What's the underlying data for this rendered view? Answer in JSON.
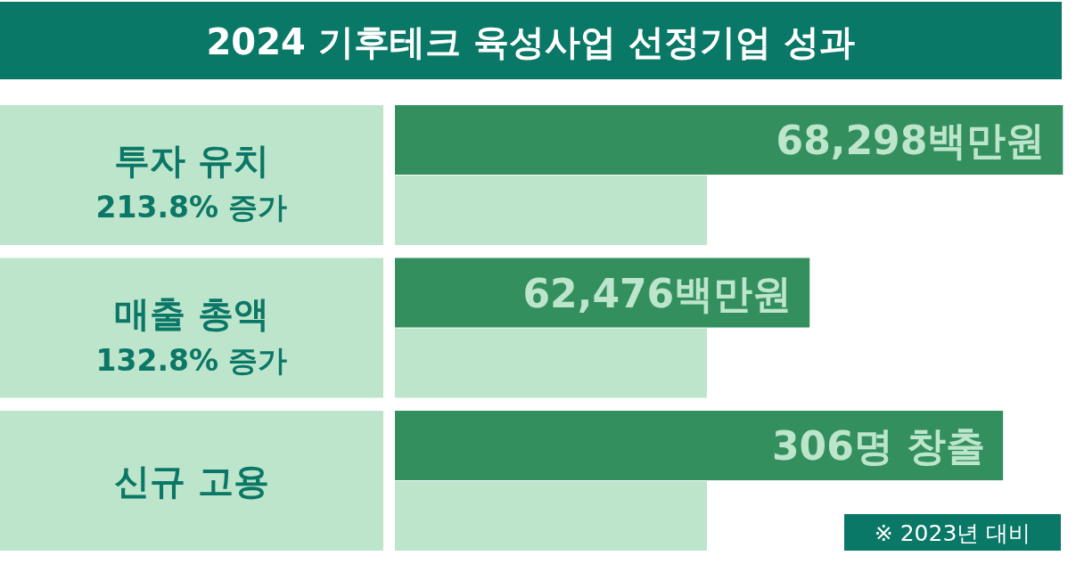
{
  "chart_data": [
    {
      "type": "bar",
      "orientation": "horizontal",
      "title": "2024 기후테크 육성사업 선정기업 성과",
      "subtitle": "213.8% 증가",
      "categories": [
        "투자 유치"
      ],
      "series": [
        {
          "color": "#33905e",
          "values": [
            68298
          ],
          "value_labels": [
            "68,298백만원"
          ]
        },
        {
          "color": "#bde5cb",
          "values": [
            31900
          ]
        }
      ],
      "tick_labels": "y"
    },
    {
      "type": "bar",
      "orientation": "horizontal",
      "subtitle": "132.8% 증가",
      "categories": [
        "매출 총액"
      ],
      "series": [
        {
          "color": "#33905e",
          "values": [
            62476
          ],
          "value_labels": [
            "62,476백만원"
          ]
        },
        {
          "color": "#bde5cb",
          "values": [
            47000
          ]
        }
      ],
      "tick_labels": "y"
    },
    {
      "type": "bar",
      "orientation": "horizontal",
      "categories": [
        "신규 고용"
      ],
      "annotations": [
        "※ 2023년 대비"
      ],
      "series": [
        {
          "color": "#33905e",
          "values": [
            306
          ],
          "value_labels": [
            "306명 창출"
          ]
        },
        {
          "color": "#bde5cb",
          "values": [
            157
          ]
        }
      ],
      "tick_labels": "y"
    }
  ]
}
